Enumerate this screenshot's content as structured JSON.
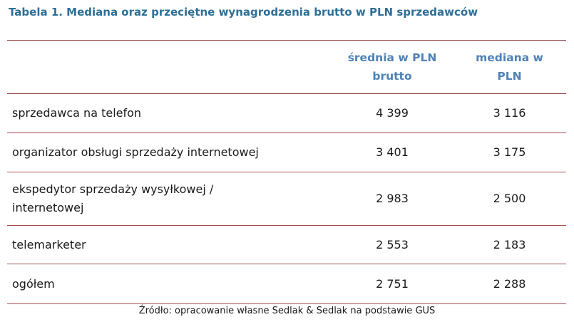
{
  "title": "Tabela 1. Mediana oraz przeciętne wynagrodzenia brutto w PLN sprzedawców",
  "table": {
    "headers": [
      "",
      "średnia w PLN brutto",
      "mediana w PLN"
    ],
    "header_lines": {
      "mean": [
        "średnia w PLN",
        "brutto"
      ],
      "median": [
        "mediana w",
        "PLN"
      ]
    },
    "rows": [
      {
        "label": "sprzedawca na telefon",
        "mean": "4 399",
        "median": "3 116"
      },
      {
        "label": "organizator obsługi sprzedaży internetowej",
        "mean": "3 401",
        "median": "3 175"
      },
      {
        "label": "ekspedytor sprzedaży wysyłkowej / internetowej",
        "label_lines": [
          "ekspedytor sprzedaży wysyłkowej /",
          "internetowej"
        ],
        "mean": "2 983",
        "median": "2 500"
      },
      {
        "label": "telemarketer",
        "mean": "2 553",
        "median": "2 183"
      },
      {
        "label": "ogółem",
        "mean": "2 751",
        "median": "2 288"
      }
    ]
  },
  "source": "Źródło: opracowanie własne Sedlak & Sedlak na podstawie GUS"
}
